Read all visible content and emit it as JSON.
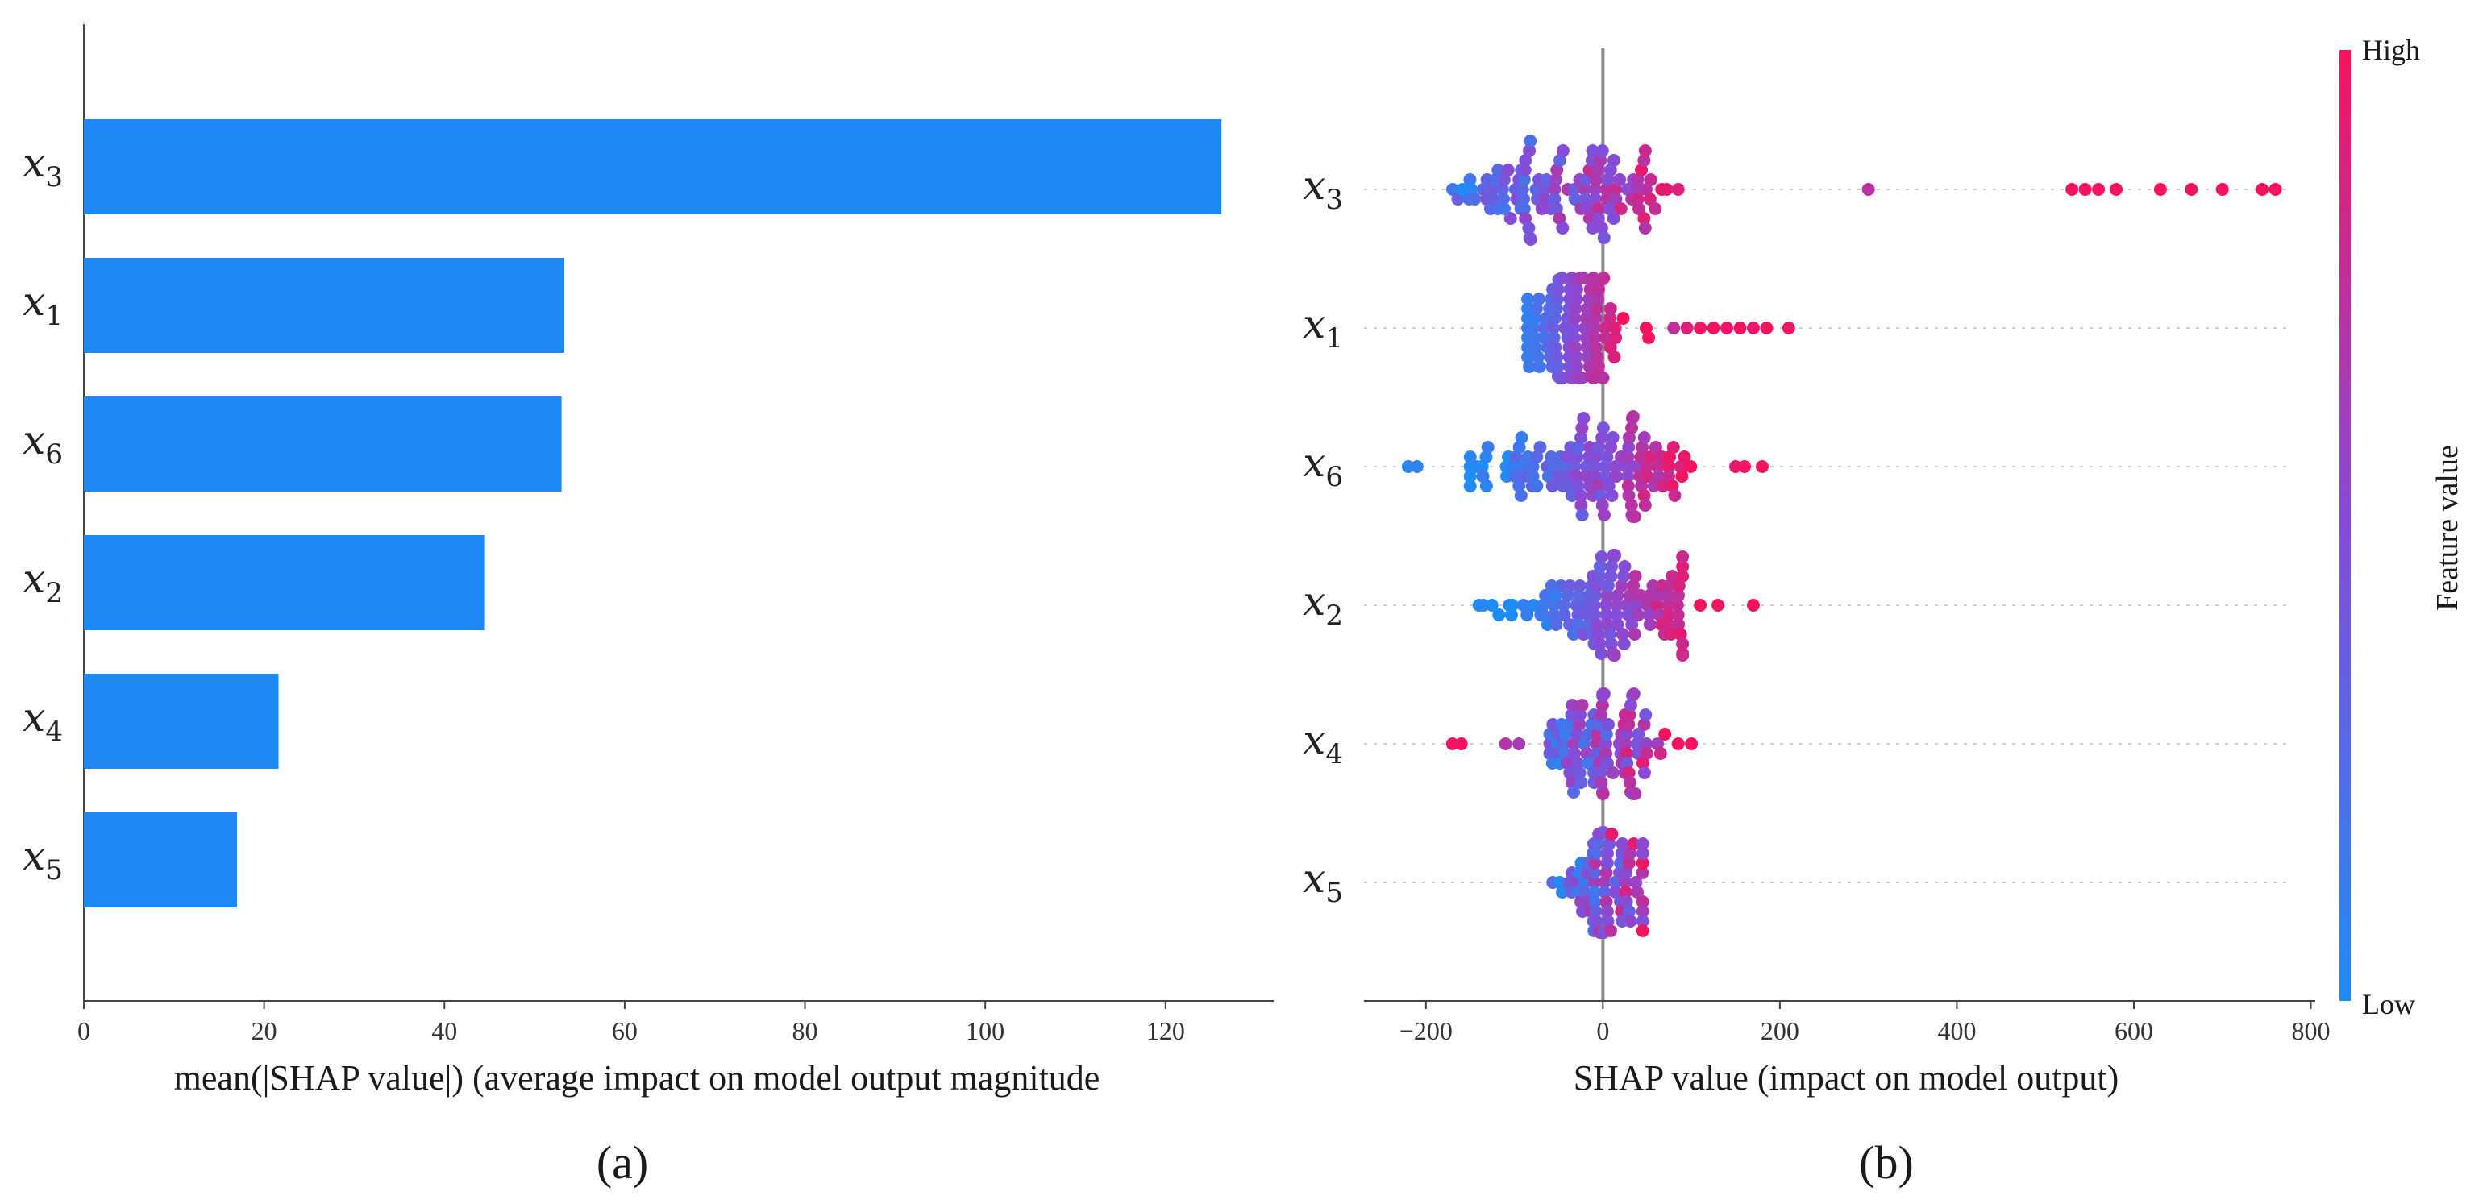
{
  "colors": {
    "bar": "#1e88f5",
    "low": "#1e8cf5",
    "high": "#f5135f",
    "axis": "#444444",
    "zero_line": "#888888",
    "grid": "#cccccc"
  },
  "chart_data": [
    {
      "id": "a",
      "type": "bar",
      "orientation": "horizontal",
      "panel_label": "(a)",
      "xlabel": "mean(|SHAP value|) (average impact on model output magnitude",
      "xlim": [
        0,
        132
      ],
      "xticks": [
        0,
        20,
        40,
        60,
        80,
        100,
        120
      ],
      "xtick_labels": [
        "0",
        "20",
        "40",
        "60",
        "80",
        "100",
        "120"
      ],
      "categories": [
        {
          "var": "x",
          "sub": "3"
        },
        {
          "var": "x",
          "sub": "1"
        },
        {
          "var": "x",
          "sub": "6"
        },
        {
          "var": "x",
          "sub": "2"
        },
        {
          "var": "x",
          "sub": "4"
        },
        {
          "var": "x",
          "sub": "5"
        }
      ],
      "values": [
        126.2,
        53.3,
        53.0,
        44.5,
        21.6,
        17.0
      ]
    },
    {
      "id": "b",
      "type": "scatter",
      "subtype": "beeswarm",
      "panel_label": "(b)",
      "xlabel": "SHAP value (impact on model output)",
      "xlim": [
        -270,
        805
      ],
      "xticks": [
        -200,
        0,
        200,
        400,
        600,
        800
      ],
      "xtick_labels": [
        "−200",
        "0",
        "200",
        "400",
        "600",
        "800"
      ],
      "colorbar": {
        "high_label": "High",
        "low_label": "Low",
        "title": "Feature value"
      },
      "series": [
        {
          "var": "x",
          "sub": "3",
          "n": 110,
          "center": -40,
          "spread": 65,
          "bulk_max": 85,
          "bulk_min": -220,
          "corr": 0.55,
          "outliers": [
            [
              300,
              0.72
            ],
            [
              530,
              1.0
            ],
            [
              545,
              1.0
            ],
            [
              560,
              0.98
            ],
            [
              580,
              1.0
            ],
            [
              630,
              1.0
            ],
            [
              665,
              1.0
            ],
            [
              700,
              1.0
            ],
            [
              745,
              1.0
            ],
            [
              760,
              1.0
            ]
          ]
        },
        {
          "var": "x",
          "sub": "1",
          "n": 110,
          "center": -35,
          "spread": 35,
          "bulk_max": 90,
          "bulk_min": -85,
          "corr": 0.85,
          "outliers": [
            [
              110,
              0.98
            ],
            [
              125,
              1.0
            ],
            [
              140,
              0.97
            ],
            [
              155,
              1.0
            ],
            [
              170,
              0.95
            ],
            [
              185,
              1.0
            ],
            [
              210,
              0.98
            ],
            [
              80,
              0.75
            ],
            [
              95,
              0.9
            ]
          ]
        },
        {
          "var": "x",
          "sub": "6",
          "n": 120,
          "center": -10,
          "spread": 60,
          "bulk_max": 110,
          "bulk_min": -150,
          "corr": 0.7,
          "outliers": [
            [
              -220,
              0.05
            ],
            [
              -210,
              0.08
            ],
            [
              150,
              0.95
            ],
            [
              160,
              0.98
            ],
            [
              180,
              1.0
            ],
            [
              -130,
              0.15
            ]
          ]
        },
        {
          "var": "x",
          "sub": "2",
          "n": 115,
          "center": 10,
          "spread": 55,
          "bulk_max": 90,
          "bulk_min": -140,
          "corr": 0.75,
          "outliers": [
            [
              110,
              1.0
            ],
            [
              130,
              0.98
            ],
            [
              170,
              1.0
            ],
            [
              -135,
              0.05
            ]
          ]
        },
        {
          "var": "x",
          "sub": "4",
          "n": 90,
          "center": 0,
          "spread": 35,
          "bulk_max": 100,
          "bulk_min": -60,
          "corr": 0.4,
          "outliers": [
            [
              -170,
              0.98
            ],
            [
              -160,
              1.0
            ],
            [
              -110,
              0.7
            ],
            [
              -95,
              0.65
            ],
            [
              70,
              1.0
            ],
            [
              85,
              0.98
            ],
            [
              100,
              1.0
            ]
          ]
        },
        {
          "var": "x",
          "sub": "5",
          "n": 75,
          "center": 0,
          "spread": 25,
          "bulk_max": 45,
          "bulk_min": -80,
          "corr": 0.3,
          "outliers": [
            [
              45,
              1.0
            ],
            [
              10,
              0.95
            ]
          ]
        }
      ]
    }
  ]
}
